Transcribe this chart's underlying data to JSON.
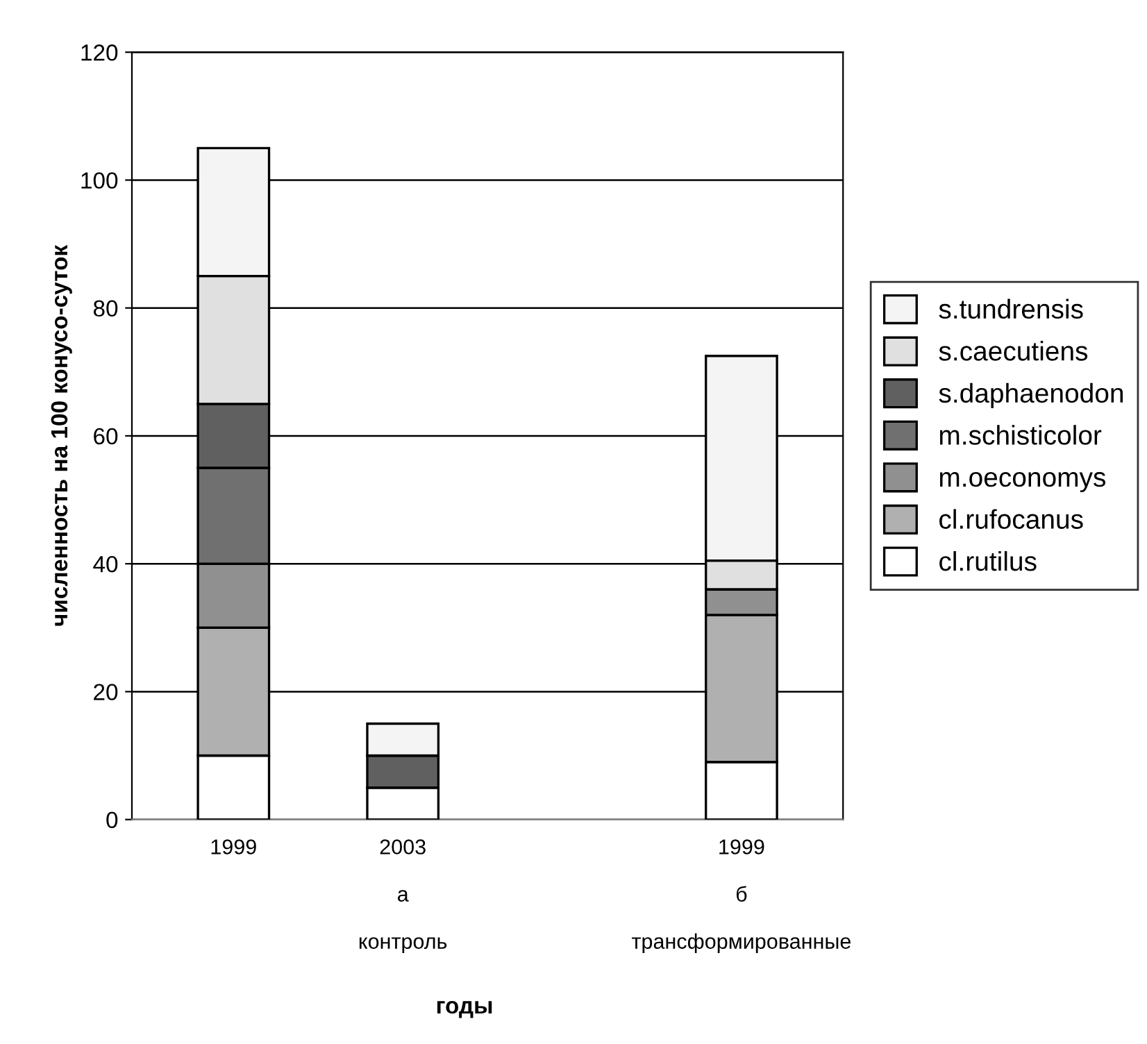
{
  "chart_data": {
    "type": "bar",
    "stacked": true,
    "annotations": [
      "годы"
    ],
    "ylabel": "численность на 100 конусо-суток",
    "categories": [
      "1999",
      "2003\n\nа\n\nконтроль",
      null,
      "1999\n\nб\n\nтрансформированные"
    ],
    "series": [
      {
        "name": "cl.rutilus",
        "color": "#ffffff",
        "values": [
          10,
          5,
          null,
          9
        ]
      },
      {
        "name": "cl.rufocanus",
        "color": "#b0b0b0",
        "values": [
          20,
          0,
          null,
          23
        ]
      },
      {
        "name": "m.oeconomys",
        "color": "#909090",
        "values": [
          10,
          0,
          null,
          4
        ]
      },
      {
        "name": "m.schisticolor",
        "color": "#707070",
        "values": [
          15,
          0,
          null,
          0
        ]
      },
      {
        "name": "s.daphaenodon",
        "color": "#606060",
        "values": [
          10,
          5,
          null,
          0
        ]
      },
      {
        "name": "s.caecutiens",
        "color": "#e0e0e0",
        "values": [
          20,
          0,
          null,
          4.5
        ]
      },
      {
        "name": "s.tundrensis",
        "color": "#f4f4f4",
        "values": [
          20,
          5,
          null,
          32
        ]
      }
    ],
    "ylim": [
      0,
      120
    ],
    "yticks": [
      0,
      20,
      40,
      60,
      80,
      100,
      120
    ],
    "grid": "y",
    "legend": "right"
  }
}
